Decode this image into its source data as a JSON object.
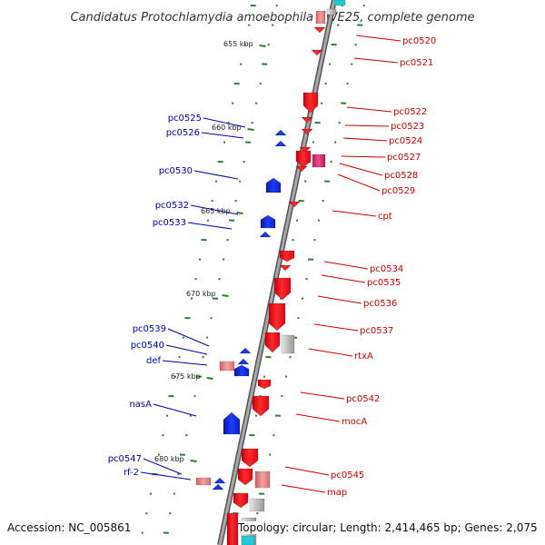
{
  "title": "Candidatus Protochlamydia amoebophila UWE25, complete genome",
  "accession": "Accession: NC_005861",
  "topology": "Topology: circular; Length: 2,414,465 bp; Genes: 2,075",
  "scale_marks": [
    "655 kbp",
    "660 kbp",
    "665 kbp",
    "670 kbp",
    "675 kbp",
    "680 kbp"
  ],
  "genes_left": [
    "pc0525",
    "pc0526",
    "pc0530",
    "pc0532",
    "pc0533",
    "pc0539",
    "pc0540",
    "def",
    "nasA",
    "pc0547",
    "rf-2"
  ],
  "genes_right": [
    "pc0520",
    "pc0521",
    "pc0522",
    "pc0523",
    "pc0524",
    "pc0527",
    "pc0528",
    "pc0529",
    "cpt",
    "pc0534",
    "pc0535",
    "pc0536",
    "pc0537",
    "rtxA",
    "pc0542",
    "mocA",
    "pc0545",
    "map"
  ],
  "colors": {
    "backbone": "#8c8c8c",
    "tick": "#2e7d32",
    "forward_gene": "#e8121b",
    "reverse_gene": "#1432d6",
    "gray_gene": "#b8b8b8",
    "pink_gene": "#e0407a",
    "light_red_gene": "#e98080",
    "cyan_gene": "#24c8d8",
    "label_left": "#0000aa",
    "label_right": "#cc0000"
  }
}
